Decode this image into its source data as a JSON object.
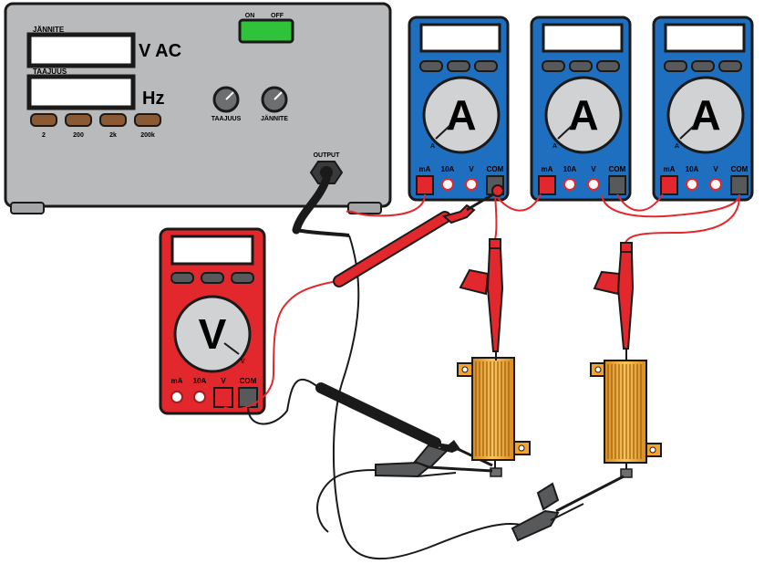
{
  "generator": {
    "voltage_label": "JÄNNITE",
    "voltage_unit": "V AC",
    "frequency_label": "TAAJUUS",
    "frequency_unit": "Hz",
    "range_buttons": [
      "2",
      "200",
      "2k",
      "200k"
    ],
    "switch_on": "ON",
    "switch_off": "OFF",
    "knob_frequency": "TAAJUUS",
    "knob_voltage": "JÄNNITE",
    "output_label": "OUTPUT"
  },
  "ammeters": [
    {
      "symbol": "A",
      "dial_mark": "A",
      "terminals": [
        "mA",
        "10A",
        "V",
        "COM"
      ]
    },
    {
      "symbol": "A",
      "dial_mark": "A",
      "terminals": [
        "mA",
        "10A",
        "V",
        "COM"
      ]
    },
    {
      "symbol": "A",
      "dial_mark": "A",
      "terminals": [
        "mA",
        "10A",
        "V",
        "COM"
      ]
    }
  ],
  "voltmeter": {
    "symbol": "V",
    "dial_mark": "V",
    "terminals": [
      "mA",
      "10A",
      "V",
      "COM"
    ]
  },
  "colors": {
    "generator_body": "#b9babc",
    "ammeter_body": "#1f6fc1",
    "voltmeter_body": "#e2282c",
    "switch_green": "#2fc33b",
    "button_brown": "#8a5a35",
    "lead_red": "#e2282c",
    "lead_black": "#1a1a1a",
    "resistor_gold": "#f4b040",
    "bracket_orange": "#f7a32a"
  }
}
